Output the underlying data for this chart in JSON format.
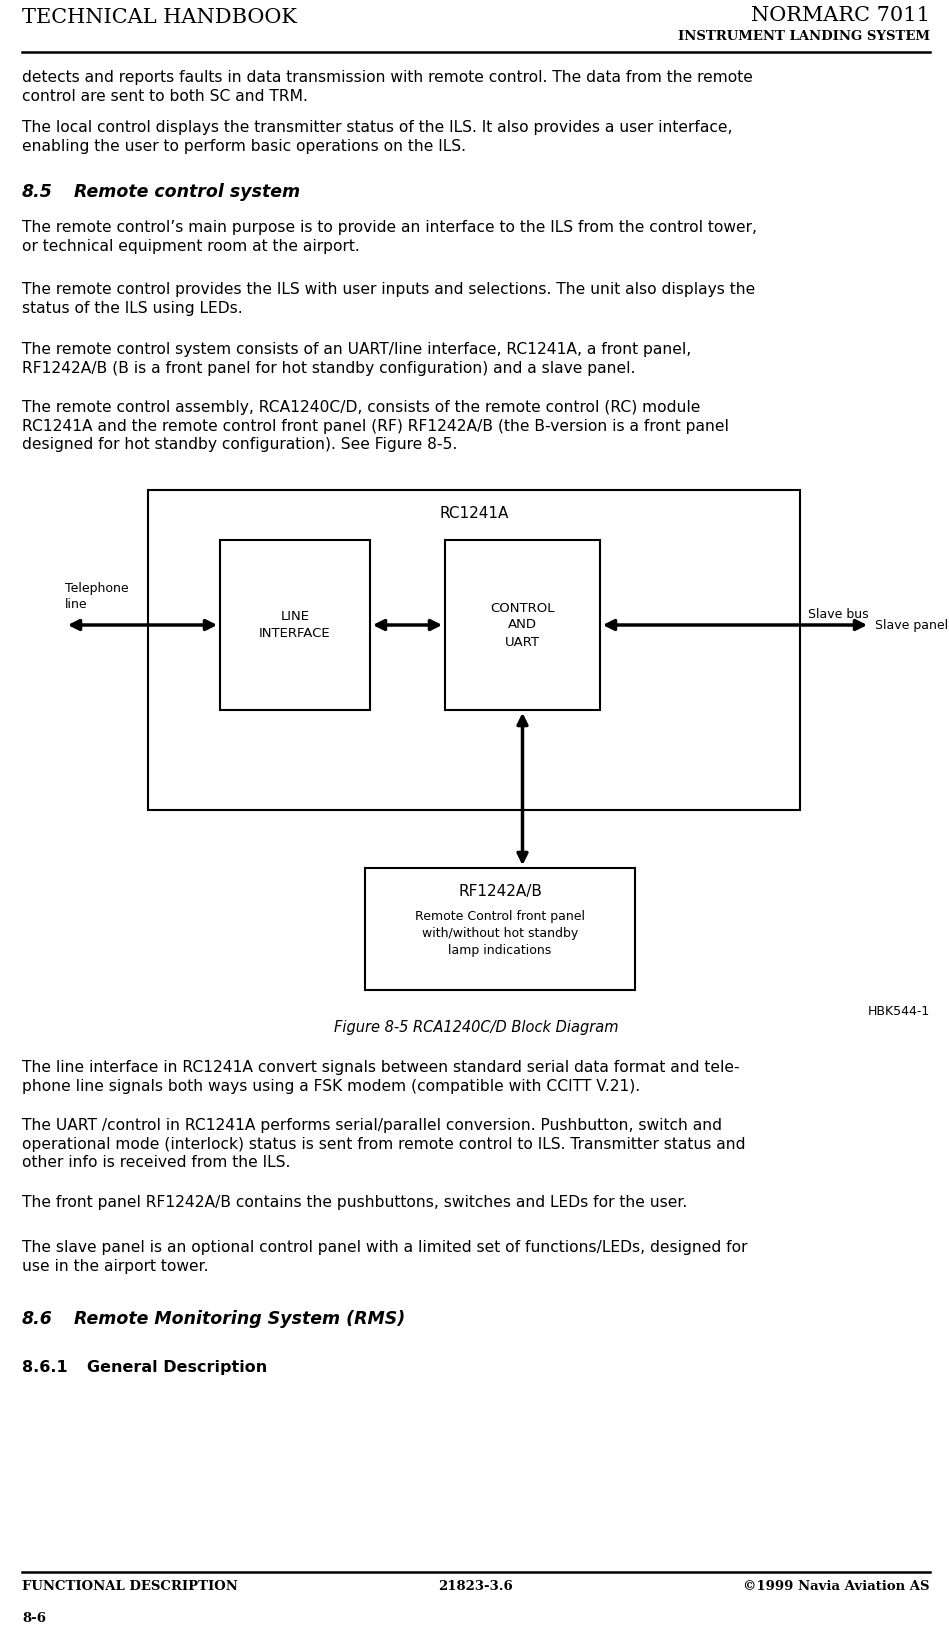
{
  "header_left": "TECHNICAL HANDBOOK",
  "header_right_top": "NORMARC 7011",
  "header_right_bottom": "INSTRUMENT LANDING SYSTEM",
  "footer_left": "FUNCTIONAL DESCRIPTION",
  "footer_center": "21823-3.6",
  "footer_right": "©1999 Navia Aviation AS",
  "footer_page": "8-6",
  "para0": "detects and reports faults in data transmission with remote control. The data from the remote\ncontrol are sent to both SC and TRM.",
  "para1": "The local control displays the transmitter status of the ILS. It also provides a user interface,\nenabling the user to perform basic operations on the ILS.",
  "para_sec85": "8.5",
  "para_sec85_title": "Remote control system",
  "para3": "The remote control’s main purpose is to provide an interface to the ILS from the control tower,\nor technical equipment room at the airport.",
  "para4": "The remote control provides the ILS with user inputs and selections. The unit also displays the\nstatus of the ILS using LEDs.",
  "para5": "The remote control system consists of an UART/line interface, RC1241A, a front panel,\nRF1242A/B (B is a front panel for hot standby configuration) and a slave panel.",
  "para6": "The remote control assembly, RCA1240C/D, consists of the remote control (RC) module\nRC1241A and the remote control front panel (RF) RF1242A/B (the B-version is a front panel\ndesigned for hot standby configuration). See Figure 8-5.",
  "fig_caption": "Figure 8-5 RCA1240C/D Block Diagram",
  "fig_note": "HBK544-1",
  "after1": "The line interface in RC1241A convert signals between standard serial data format and tele-\nphone line signals both ways using a FSK modem (compatible with CCITT V.21).",
  "after2": "The UART /control in RC1241A performs serial/parallel conversion. Pushbutton, switch and\noperational mode (interlock) status is sent from remote control to ILS. Transmitter status and\nother info is received from the ILS.",
  "after3": "The front panel RF1242A/B contains the pushbuttons, switches and LEDs for the user.",
  "after4": "The slave panel is an optional control panel with a limited set of functions/LEDs, designed for\nuse in the airport tower.",
  "para_sec86": "8.6",
  "para_sec86_title": "Remote Monitoring System (RMS)",
  "para_sec861": "8.6.1",
  "para_sec861_title": "General Description",
  "bg_color": "#ffffff",
  "text_color": "#000000",
  "body_fontsize": 11.2,
  "section_fontsize": 12.5
}
